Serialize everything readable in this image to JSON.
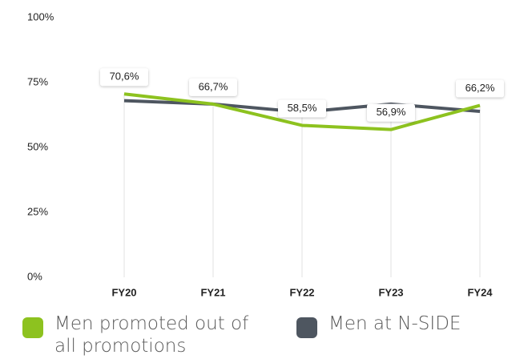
{
  "chart_data": {
    "type": "line",
    "categories": [
      "FY20",
      "FY21",
      "FY22",
      "FY23",
      "FY24"
    ],
    "series": [
      {
        "name": "Men promoted out of all promotions",
        "color": "#8dc21f",
        "values": [
          70.6,
          66.7,
          58.5,
          56.9,
          66.2
        ],
        "value_labels": [
          "70,6%",
          "66,7%",
          "58,5%",
          "56,9%",
          "66,2%"
        ]
      },
      {
        "name": "Men at N-SIDE",
        "color": "#4e5660",
        "values": [
          68,
          66.7,
          63.6,
          66.7,
          63.9
        ]
      }
    ],
    "ylim": [
      0,
      100
    ],
    "yticks": [
      {
        "value": 0,
        "label": "0%"
      },
      {
        "value": 25,
        "label": "25%"
      },
      {
        "value": 50,
        "label": "50%"
      },
      {
        "value": 75,
        "label": "75%"
      },
      {
        "value": 100,
        "label": "100%"
      }
    ]
  }
}
